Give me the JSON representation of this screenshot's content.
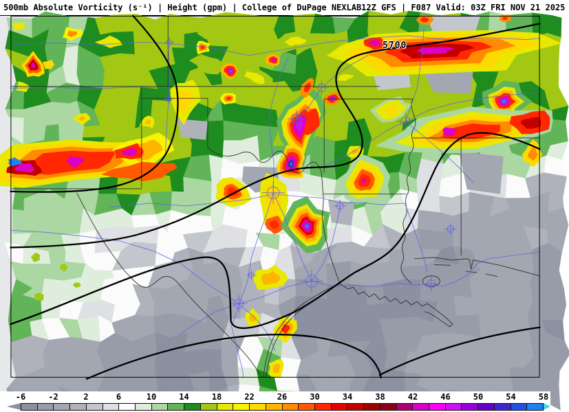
{
  "header": {
    "title_left": "500mb Absolute Vorticity (s⁻¹) | Height (gpm) | College of DuPage NEXLAB",
    "title_right": "12Z GFS | F087 Valid: 03Z FRI NOV 21 2025"
  },
  "map": {
    "contour_label": "5700",
    "contour_color": "#000000",
    "highway_color": "#5E5EE8",
    "border_color": "#2b2b2b"
  },
  "colorbar": {
    "min": -6,
    "max": 58,
    "step": 2,
    "ticks": [
      "-6",
      "-2",
      "2",
      "6",
      "10",
      "14",
      "18",
      "22",
      "26",
      "30",
      "34",
      "38",
      "42",
      "46",
      "50",
      "54",
      "58"
    ],
    "left_arrow_color": "#8B91A0",
    "right_arrow_color": "#44D2E6",
    "stops": [
      {
        "v": -6,
        "c": "#8B91A0"
      },
      {
        "v": -4,
        "c": "#979CA8"
      },
      {
        "v": -2,
        "c": "#A3A7B1"
      },
      {
        "v": 0,
        "c": "#AFB2BB"
      },
      {
        "v": 2,
        "c": "#C3C6CC"
      },
      {
        "v": 4,
        "c": "#DFE0E4"
      },
      {
        "v": 6,
        "c": "#FBFBFC"
      },
      {
        "v": 8,
        "c": "#DFEEDC"
      },
      {
        "v": 10,
        "c": "#AAD7A2"
      },
      {
        "v": 12,
        "c": "#62B458"
      },
      {
        "v": 14,
        "c": "#1F8C1F"
      },
      {
        "v": 16,
        "c": "#A2C814"
      },
      {
        "v": 18,
        "c": "#E8E800"
      },
      {
        "v": 20,
        "c": "#F8F400"
      },
      {
        "v": 22,
        "c": "#FFD800"
      },
      {
        "v": 24,
        "c": "#FFB400"
      },
      {
        "v": 26,
        "c": "#FF8C00"
      },
      {
        "v": 28,
        "c": "#FF5A00"
      },
      {
        "v": 30,
        "c": "#FF2800"
      },
      {
        "v": 32,
        "c": "#E60000"
      },
      {
        "v": 34,
        "c": "#C30000"
      },
      {
        "v": 36,
        "c": "#A00000"
      },
      {
        "v": 38,
        "c": "#8A0016"
      },
      {
        "v": 40,
        "c": "#AC0070"
      },
      {
        "v": 42,
        "c": "#DC00C8"
      },
      {
        "v": 44,
        "c": "#FA00FA"
      },
      {
        "v": 46,
        "c": "#C814F0"
      },
      {
        "v": 48,
        "c": "#9600DC"
      },
      {
        "v": 50,
        "c": "#6400C8"
      },
      {
        "v": 52,
        "c": "#3C28D2"
      },
      {
        "v": 54,
        "c": "#2350E6"
      },
      {
        "v": 56,
        "c": "#1E82F0"
      },
      {
        "v": 58,
        "c": "#30BEF0"
      }
    ]
  }
}
